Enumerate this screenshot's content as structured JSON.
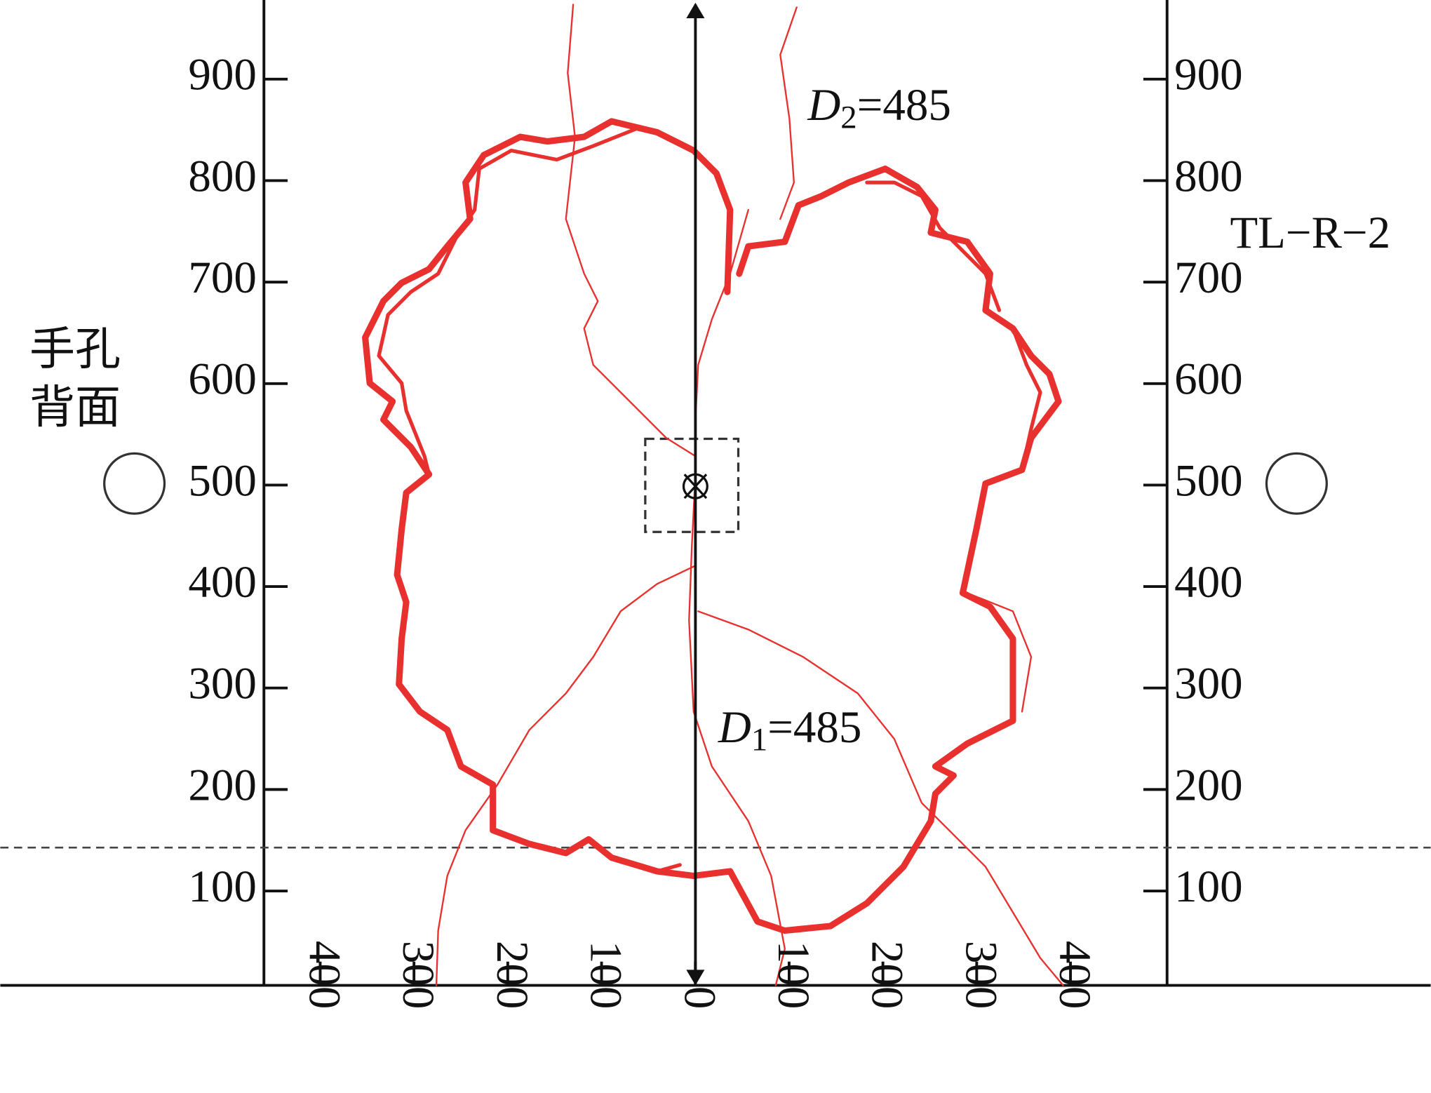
{
  "chart_data": {
    "type": "line",
    "xlim": [
      -460,
      503
    ],
    "ylim": [
      7,
      978
    ],
    "xticks": [
      {
        "value": -400,
        "label": "400"
      },
      {
        "value": -300,
        "label": "300"
      },
      {
        "value": -200,
        "label": "200"
      },
      {
        "value": -100,
        "label": "100"
      },
      0,
      100,
      200,
      300,
      400
    ],
    "yticks": [
      100,
      200,
      300,
      400,
      500,
      600,
      700,
      800,
      900
    ],
    "color": "#e8312f",
    "d2_label": {
      "symbol": "D",
      "subscript": "2",
      "text": "=485"
    },
    "d1_label": {
      "symbol": "D",
      "subscript": "1",
      "text": "=485"
    },
    "specimen": "TL−R−2",
    "side_label": [
      "手孔",
      "背面"
    ]
  }
}
